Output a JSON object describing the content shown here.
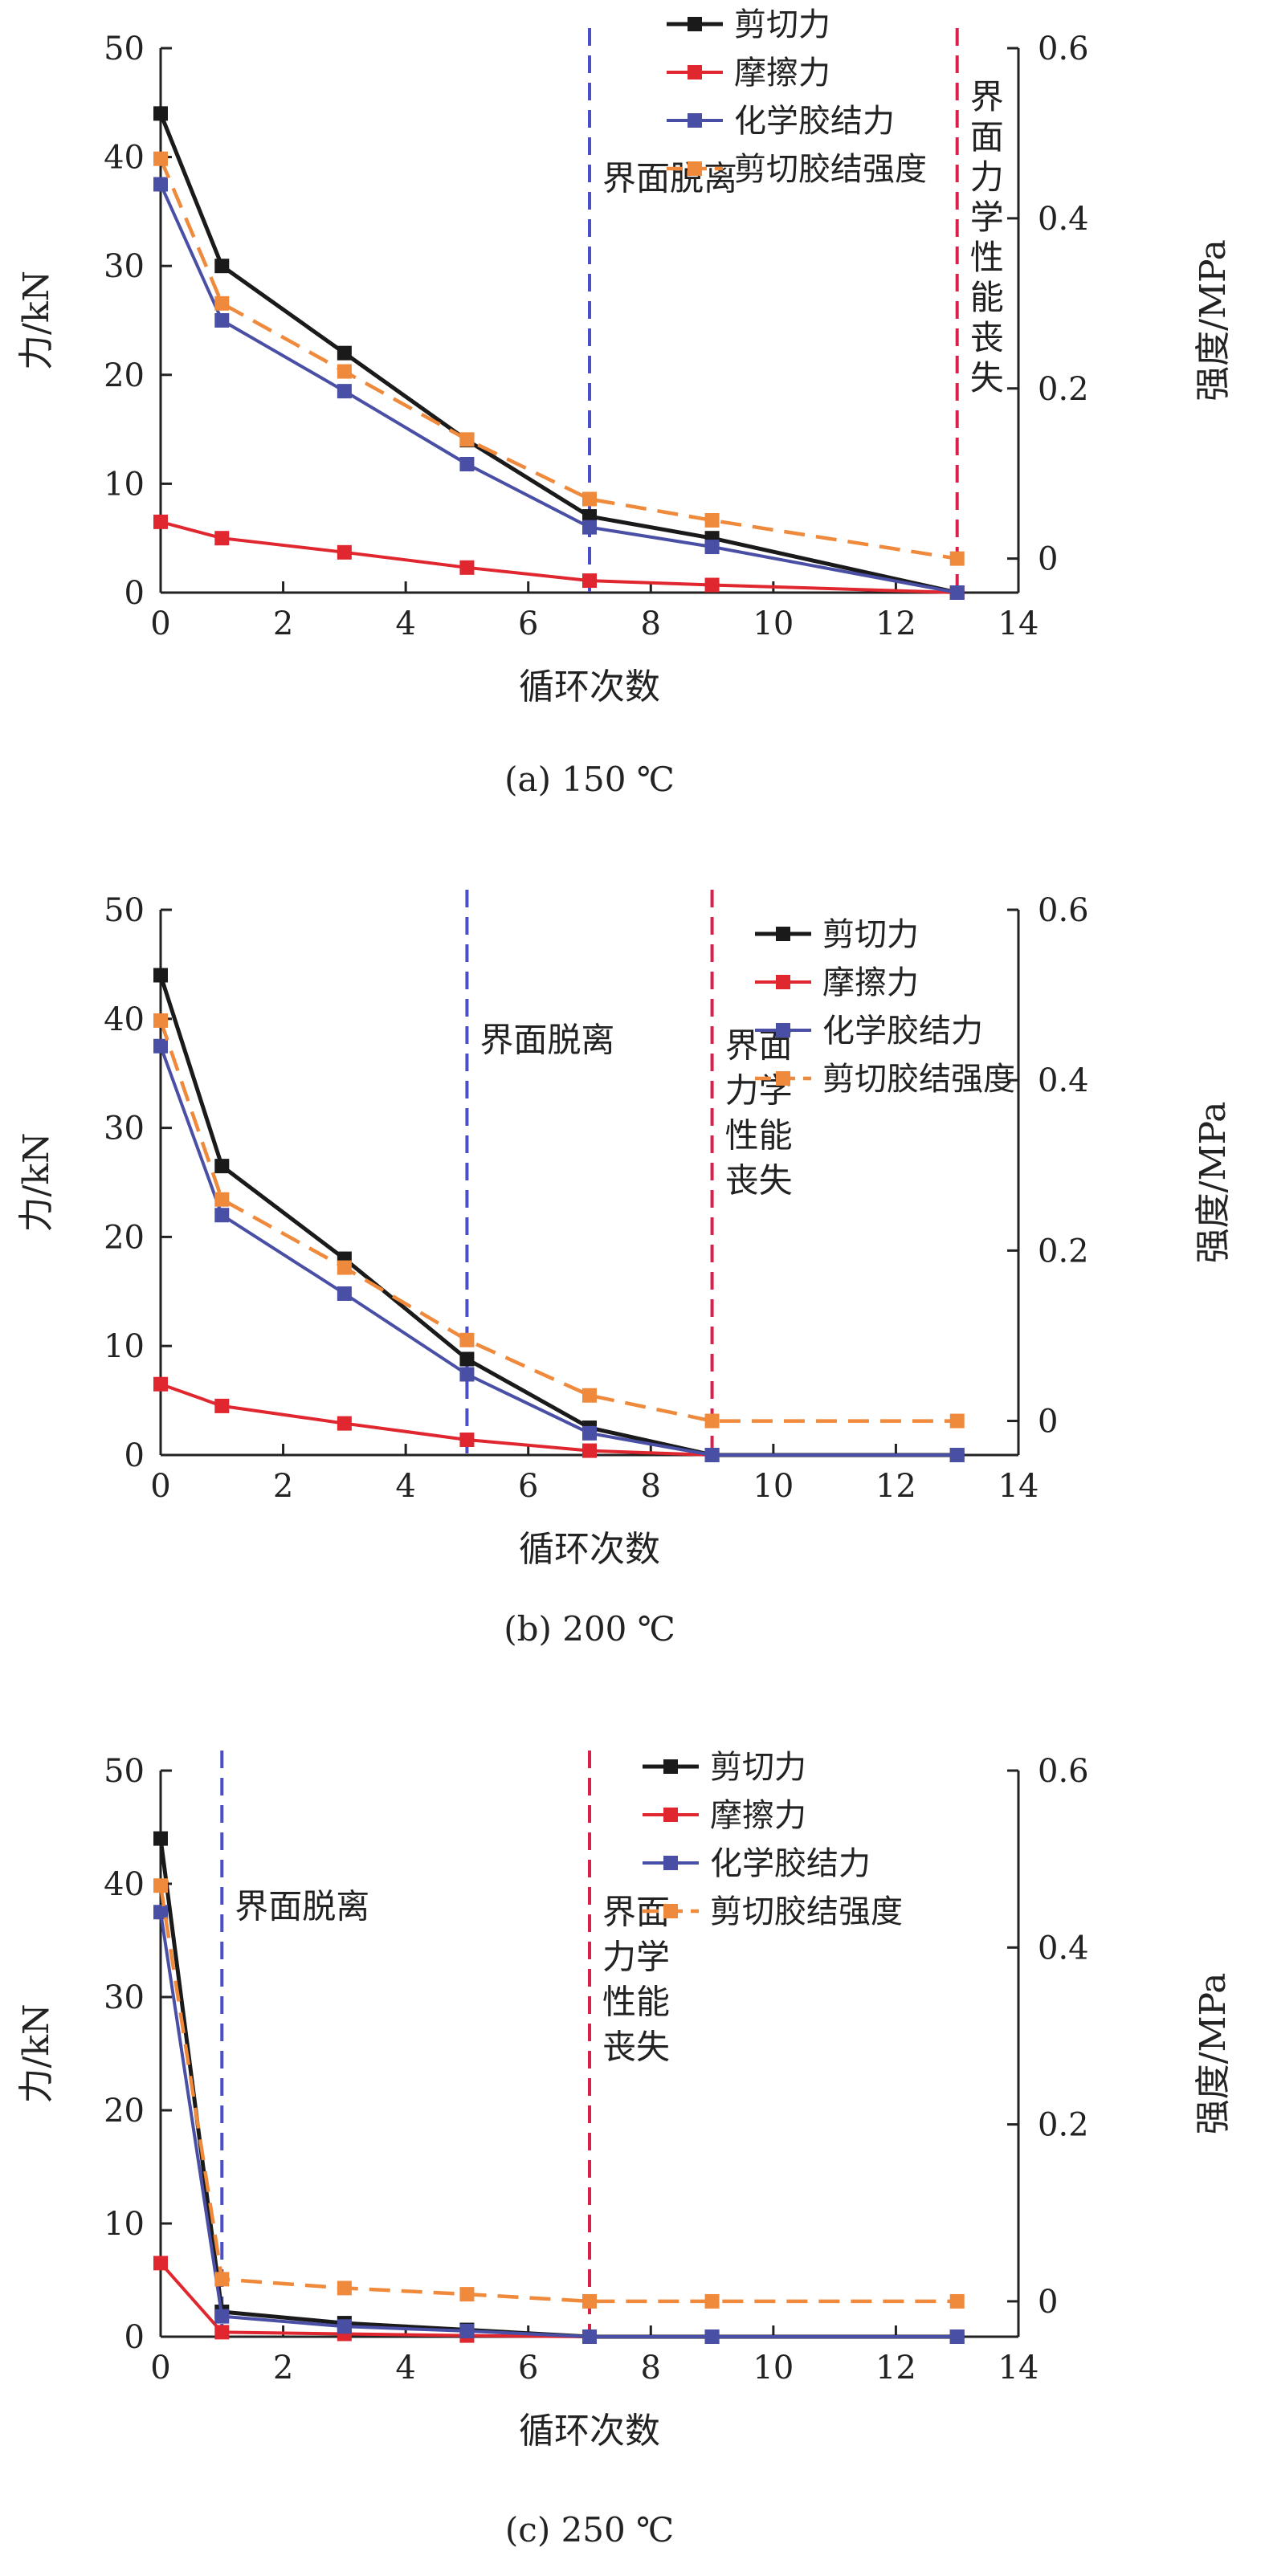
{
  "colors": {
    "shear_force": "#1a1a1a",
    "friction": "#e0262e",
    "chemical_bond": "#4a4fa6",
    "shear_strength": "#ef8a3c",
    "debond_line": "#4a4fc8",
    "loss_line": "#d8204a"
  },
  "chart_data": [
    {
      "type": "line",
      "caption": "(a) 150 ℃",
      "xlabel": "循环次数",
      "ylabel": "力/kN",
      "y2label": "强度/MPa",
      "xlim": [
        0,
        14
      ],
      "ylim": [
        0,
        50
      ],
      "y2lim": [
        -0.04,
        0.6
      ],
      "xticks": [
        "0",
        "2",
        "4",
        "6",
        "8",
        "10",
        "12",
        "14"
      ],
      "yticks": [
        "0",
        "10",
        "20",
        "30",
        "40",
        "50"
      ],
      "y2ticks": [
        "0",
        "0.2",
        "0.4",
        "0.6"
      ],
      "legend": [
        "剪切力",
        "摩擦力",
        "化学胶结力",
        "剪切胶结强度"
      ],
      "legend_position": "top-right",
      "series": [
        {
          "name": "剪切力",
          "axis": "left",
          "x": [
            0,
            1,
            3,
            5,
            7,
            9,
            13
          ],
          "y": [
            44,
            30,
            22,
            14,
            7,
            5,
            0
          ]
        },
        {
          "name": "摩擦力",
          "axis": "left",
          "x": [
            0,
            1,
            3,
            5,
            7,
            9,
            13
          ],
          "y": [
            6.5,
            5,
            3.7,
            2.3,
            1.1,
            0.7,
            0
          ]
        },
        {
          "name": "化学胶结力",
          "axis": "left",
          "x": [
            0,
            1,
            3,
            5,
            7,
            9,
            13
          ],
          "y": [
            37.5,
            25,
            18.5,
            11.8,
            6,
            4.2,
            0
          ]
        },
        {
          "name": "剪切胶结强度",
          "axis": "right",
          "x": [
            0,
            1,
            3,
            5,
            7,
            9,
            13
          ],
          "y": [
            0.47,
            0.3,
            0.22,
            0.14,
            0.07,
            0.045,
            0
          ]
        }
      ],
      "vlines": [
        {
          "x": 7,
          "label_lines": [
            "界面脱离"
          ],
          "style": "debond"
        },
        {
          "x": 13,
          "label_lines": [
            "界",
            "面",
            "力",
            "学",
            "性",
            "能",
            "丧",
            "失"
          ],
          "style": "loss"
        }
      ]
    },
    {
      "type": "line",
      "caption": "(b) 200 ℃",
      "xlabel": "循环次数",
      "ylabel": "力/kN",
      "y2label": "强度/MPa",
      "xlim": [
        0,
        14
      ],
      "ylim": [
        0,
        50
      ],
      "y2lim": [
        -0.04,
        0.6
      ],
      "xticks": [
        "0",
        "2",
        "4",
        "6",
        "8",
        "10",
        "12",
        "14"
      ],
      "yticks": [
        "0",
        "10",
        "20",
        "30",
        "40",
        "50"
      ],
      "y2ticks": [
        "0",
        "0.2",
        "0.4",
        "0.6"
      ],
      "legend": [
        "剪切力",
        "摩擦力",
        "化学胶结力",
        "剪切胶结强度"
      ],
      "legend_position": "top-right",
      "series": [
        {
          "name": "剪切力",
          "axis": "left",
          "x": [
            0,
            1,
            3,
            5,
            7,
            9,
            13
          ],
          "y": [
            44,
            26.5,
            18,
            8.8,
            2.5,
            0,
            0
          ]
        },
        {
          "name": "摩擦力",
          "axis": "left",
          "x": [
            0,
            1,
            3,
            5,
            7,
            9
          ],
          "y": [
            6.5,
            4.5,
            2.9,
            1.4,
            0.4,
            0
          ]
        },
        {
          "name": "化学胶结力",
          "axis": "left",
          "x": [
            0,
            1,
            3,
            5,
            7,
            9,
            13
          ],
          "y": [
            37.5,
            22,
            14.8,
            7.4,
            2,
            0,
            0
          ]
        },
        {
          "name": "剪切胶结强度",
          "axis": "right",
          "x": [
            0,
            1,
            3,
            5,
            7,
            9,
            13
          ],
          "y": [
            0.47,
            0.26,
            0.18,
            0.095,
            0.03,
            0,
            0
          ]
        }
      ],
      "vlines": [
        {
          "x": 5,
          "label_lines": [
            "界面脱离"
          ],
          "style": "debond"
        },
        {
          "x": 9,
          "label_lines": [
            "界面",
            "力学",
            "性能",
            "丧失"
          ],
          "style": "loss"
        }
      ]
    },
    {
      "type": "line",
      "caption": "(c) 250 ℃",
      "xlabel": "循环次数",
      "ylabel": "力/kN",
      "y2label": "强度/MPa",
      "xlim": [
        0,
        14
      ],
      "ylim": [
        0,
        50
      ],
      "y2lim": [
        -0.04,
        0.6
      ],
      "xticks": [
        "0",
        "2",
        "4",
        "6",
        "8",
        "10",
        "12",
        "14"
      ],
      "yticks": [
        "0",
        "10",
        "20",
        "30",
        "40",
        "50"
      ],
      "y2ticks": [
        "0",
        "0.2",
        "0.4",
        "0.6"
      ],
      "legend": [
        "剪切力",
        "摩擦力",
        "化学胶结力",
        "剪切胶结强度"
      ],
      "legend_position": "top-left",
      "series": [
        {
          "name": "剪切力",
          "axis": "left",
          "x": [
            0,
            1,
            3,
            5,
            7,
            9,
            13
          ],
          "y": [
            44,
            2.2,
            1.2,
            0.6,
            0,
            0,
            0
          ]
        },
        {
          "name": "摩擦力",
          "axis": "left",
          "x": [
            0,
            1,
            3,
            5,
            7
          ],
          "y": [
            6.5,
            0.4,
            0.25,
            0.1,
            0
          ]
        },
        {
          "name": "化学胶结力",
          "axis": "left",
          "x": [
            0,
            1,
            3,
            5,
            7,
            9,
            13
          ],
          "y": [
            37.5,
            1.8,
            0.9,
            0.5,
            0,
            0,
            0
          ]
        },
        {
          "name": "剪切胶结强度",
          "axis": "right",
          "x": [
            0,
            1,
            3,
            5,
            7,
            9,
            13
          ],
          "y": [
            0.47,
            0.025,
            0.015,
            0.008,
            0,
            0,
            0
          ]
        }
      ],
      "vlines": [
        {
          "x": 1,
          "label_lines": [
            "界面脱离"
          ],
          "style": "debond"
        },
        {
          "x": 7,
          "label_lines": [
            "界面",
            "力学",
            "性能",
            "丧失"
          ],
          "style": "loss"
        }
      ]
    }
  ]
}
